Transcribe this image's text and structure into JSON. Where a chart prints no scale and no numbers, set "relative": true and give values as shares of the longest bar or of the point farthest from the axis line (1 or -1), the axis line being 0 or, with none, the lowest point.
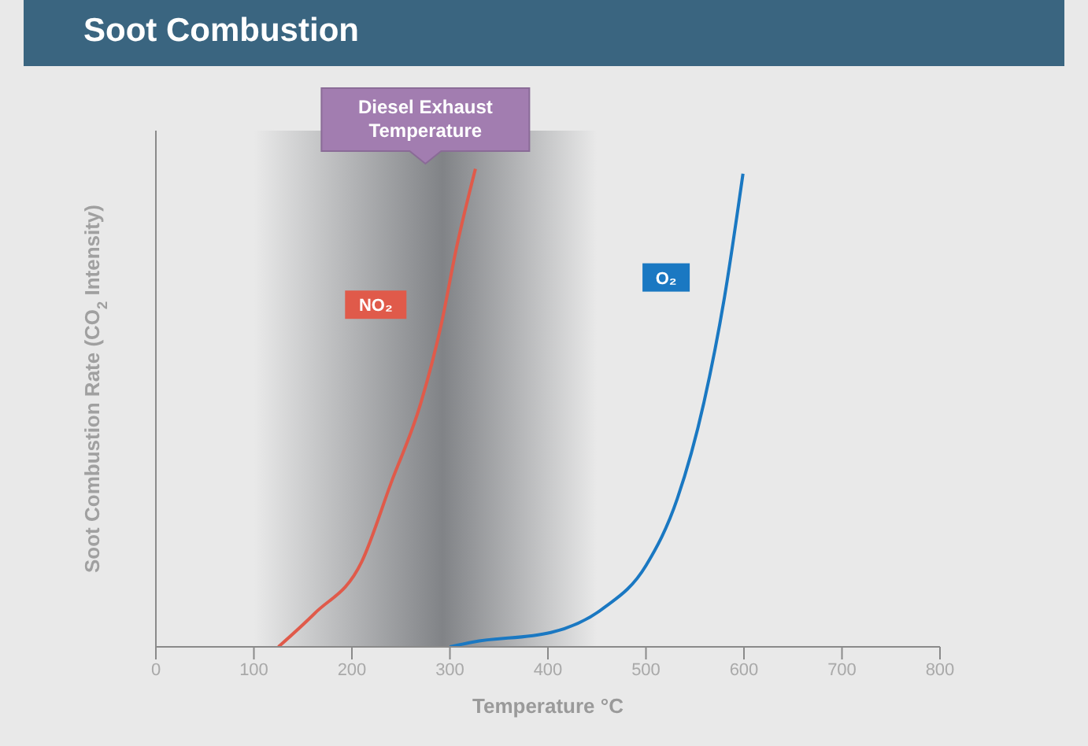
{
  "chart_data": {
    "type": "line",
    "title": "Soot Combustion",
    "xlabel": "Temperature °C",
    "ylabel": "Soot Combustion Rate  (CO$_{2}$ Intensity)",
    "relative": true,
    "xlim": [
      0,
      800
    ],
    "xticks": [
      0,
      100,
      200,
      300,
      400,
      500,
      600,
      700,
      800
    ],
    "marker": "none",
    "line_style": "solid",
    "bands": [
      {
        "axis": "x",
        "from": 100,
        "to": 450,
        "label": "Diesel Exhaust Temperature",
        "color": "#5e6166"
      }
    ],
    "series": [
      {
        "name": "NO₂",
        "color": "#e05a4a",
        "x": [
          125,
          162,
          210,
          240,
          270,
          291,
          307,
          326
        ],
        "values": [
          0,
          0.07,
          0.178,
          0.343,
          0.508,
          0.673,
          0.838,
          1.0
        ]
      },
      {
        "name": "O₂",
        "color": "#1a78c2",
        "x": [
          300,
          323,
          403,
          456,
          500,
          532,
          559,
          580,
          599
        ],
        "values": [
          0,
          0.01,
          0.03,
          0.08,
          0.17,
          0.31,
          0.51,
          0.73,
          0.99
        ]
      }
    ]
  }
}
